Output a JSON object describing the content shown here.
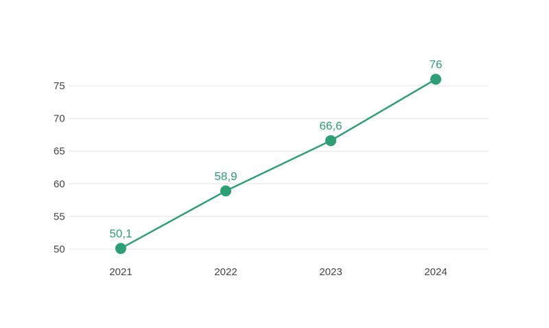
{
  "chart_data": {
    "type": "line",
    "title": "",
    "xlabel": "",
    "ylabel": "",
    "x": [
      "2021",
      "2022",
      "2023",
      "2024"
    ],
    "series": [
      {
        "values": [
          50.1,
          58.9,
          66.6,
          76
        ],
        "labels": [
          "50,1",
          "58,9",
          "66,6",
          "76"
        ],
        "color": "#2e9e74"
      }
    ],
    "yticks": [
      "50",
      "55",
      "60",
      "65",
      "70",
      "75"
    ],
    "ylim": [
      50,
      75
    ],
    "grid": true,
    "legend": "none"
  }
}
